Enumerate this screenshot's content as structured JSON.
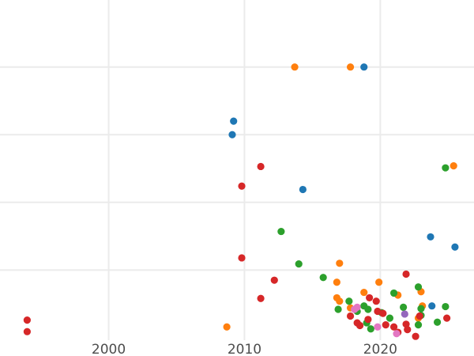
{
  "chart_data": {
    "type": "scatter",
    "title": "",
    "xlabel": "",
    "ylabel": "",
    "xlim": [
      1992,
      2026.9
    ],
    "ylim": [
      -0.27,
      4.99
    ],
    "grid": true,
    "x_ticks": [
      2000,
      2010,
      2020
    ],
    "x_tick_labels": [
      "2000",
      "2010",
      "2020"
    ],
    "y_gridlines": [
      1,
      2,
      3,
      4
    ],
    "series": [
      {
        "color": "#1f77b4",
        "points": [
          [
            2018.8,
            4.0
          ],
          [
            2009.2,
            3.2
          ],
          [
            2009.1,
            3.0
          ],
          [
            2014.3,
            2.19
          ],
          [
            2023.7,
            1.49
          ],
          [
            2025.5,
            1.34
          ],
          [
            2023.8,
            0.47
          ]
        ]
      },
      {
        "color": "#ff7f0e",
        "points": [
          [
            2013.7,
            4.0
          ],
          [
            2017.8,
            4.0
          ],
          [
            2025.4,
            2.54
          ],
          [
            2017.0,
            1.1
          ],
          [
            2016.8,
            0.82
          ],
          [
            2019.9,
            0.82
          ],
          [
            2018.8,
            0.67
          ],
          [
            2023.0,
            0.68
          ],
          [
            2021.3,
            0.63
          ],
          [
            2016.8,
            0.59
          ],
          [
            2017.0,
            0.54
          ],
          [
            2017.8,
            0.44
          ],
          [
            2023.1,
            0.47
          ],
          [
            2008.7,
            0.16
          ],
          [
            2022.8,
            0.29
          ]
        ]
      },
      {
        "color": "#2ca02c",
        "points": [
          [
            2024.8,
            2.51
          ],
          [
            2012.7,
            1.57
          ],
          [
            2014.0,
            1.09
          ],
          [
            2015.8,
            0.89
          ],
          [
            2021.0,
            0.66
          ],
          [
            2022.8,
            0.75
          ],
          [
            2017.7,
            0.54
          ],
          [
            2016.9,
            0.42
          ],
          [
            2018.8,
            0.47
          ],
          [
            2019.1,
            0.42
          ],
          [
            2018.3,
            0.39
          ],
          [
            2020.1,
            0.37
          ],
          [
            2020.7,
            0.29
          ],
          [
            2021.7,
            0.45
          ],
          [
            2023.0,
            0.43
          ],
          [
            2023.0,
            0.33
          ],
          [
            2022.8,
            0.19
          ],
          [
            2024.2,
            0.23
          ],
          [
            2024.8,
            0.46
          ],
          [
            2019.3,
            0.13
          ],
          [
            2019.0,
            0.22
          ]
        ]
      },
      {
        "color": "#d62728",
        "points": [
          [
            2011.2,
            2.53
          ],
          [
            2009.8,
            2.24
          ],
          [
            2009.8,
            1.18
          ],
          [
            2012.2,
            0.85
          ],
          [
            2011.2,
            0.58
          ],
          [
            1994.0,
            0.26
          ],
          [
            1994.0,
            0.09
          ],
          [
            2021.9,
            0.94
          ],
          [
            2019.2,
            0.59
          ],
          [
            2019.7,
            0.54
          ],
          [
            2017.8,
            0.32
          ],
          [
            2018.3,
            0.22
          ],
          [
            2018.5,
            0.18
          ],
          [
            2019.1,
            0.27
          ],
          [
            2019.8,
            0.39
          ],
          [
            2020.2,
            0.36
          ],
          [
            2020.4,
            0.19
          ],
          [
            2021.0,
            0.16
          ],
          [
            2021.9,
            0.2
          ],
          [
            2022.0,
            0.12
          ],
          [
            2022.9,
            0.32
          ],
          [
            2022.6,
            0.02
          ],
          [
            2024.9,
            0.29
          ],
          [
            2021.3,
            0.08
          ]
        ]
      },
      {
        "color": "#e377c2",
        "points": [
          [
            2018.3,
            0.45
          ],
          [
            2018.1,
            0.42
          ],
          [
            2019.8,
            0.16
          ],
          [
            2021.2,
            0.06
          ]
        ]
      },
      {
        "color": "#9467bd",
        "points": [
          [
            2021.8,
            0.35
          ]
        ]
      }
    ]
  }
}
